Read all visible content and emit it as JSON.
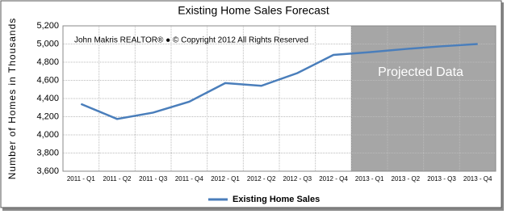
{
  "chart_data": {
    "type": "line",
    "title": "Existing Home Sales Forecast",
    "y_label": "Number of Homes in Thousands",
    "annotations": [
      "John Makris REALTOR®  ●  © Copyright 2012 All Rights Reserved",
      "Projected Data"
    ],
    "categories": [
      "2011 - Q1",
      "2011 - Q2",
      "2011 - Q3",
      "2011 - Q4",
      "2012 - Q1",
      "2012 - Q2",
      "2012 - Q3",
      "2012 - Q4",
      "2013 - Q1",
      "2013 - Q2",
      "2013 - Q3",
      "2013 - Q4"
    ],
    "series": [
      {
        "name": "Existing Home Sales",
        "color": "#4a7ebb",
        "values": [
          4340,
          4175,
          4245,
          4365,
          4570,
          4540,
          4680,
          4880,
          4910,
          4945,
          4975,
          5000
        ]
      }
    ],
    "ylim": [
      3600,
      5200
    ],
    "yticks": [
      {
        "value": 3600,
        "label": "3,600"
      },
      {
        "value": 3800,
        "label": "3,800"
      },
      {
        "value": 4000,
        "label": "4,000"
      },
      {
        "value": 4200,
        "label": "4,200"
      },
      {
        "value": 4400,
        "label": "4,400"
      },
      {
        "value": 4600,
        "label": "4,600"
      },
      {
        "value": 4800,
        "label": "4,800"
      },
      {
        "value": 5000,
        "label": "5,000"
      },
      {
        "value": 5200,
        "label": "5,200"
      }
    ],
    "grid": true,
    "legend": "bottom"
  }
}
